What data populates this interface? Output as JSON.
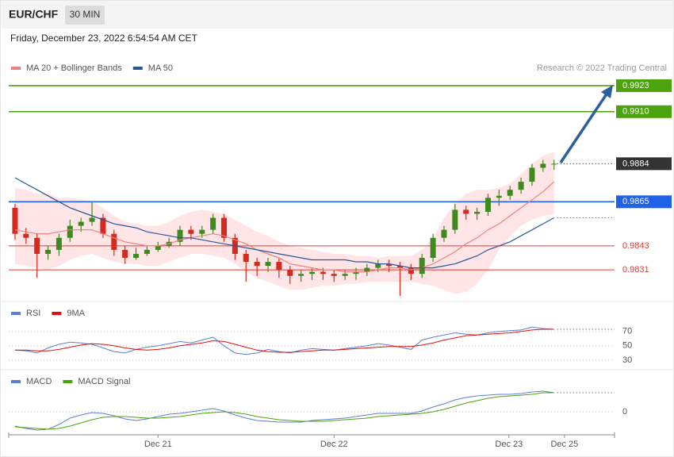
{
  "header": {
    "symbol": "EUR/CHF",
    "interval": "30 MIN",
    "datetime": "Friday, December 23, 2022 6:54:54 AM CET"
  },
  "chart_data": [
    {
      "type": "candlestick",
      "credit": "Research © 2022 Trading Central",
      "xlim": [
        0,
        55
      ],
      "ylim": [
        0.9816,
        0.9942
      ],
      "colors": {
        "up": "#3f8a1e",
        "down": "#d42a20"
      },
      "open": [
        0.9862,
        0.9849,
        0.9847,
        0.9839,
        0.9841,
        0.9847,
        0.9853,
        0.9855,
        0.9857,
        0.9849,
        0.9841,
        0.9837,
        0.9839,
        0.9841,
        0.9843,
        0.9845,
        0.9851,
        0.9849,
        0.9851,
        0.9857,
        0.9847,
        0.9839,
        0.9835,
        0.9833,
        0.9835,
        0.9831,
        0.9828,
        0.9829,
        0.983,
        0.9829,
        0.9828,
        0.9829,
        0.983,
        0.9832,
        0.9834,
        0.9833,
        0.9832,
        0.9829,
        0.9837,
        0.9847,
        0.9851,
        0.9861,
        0.9859,
        0.986,
        0.9867,
        0.9868,
        0.9871,
        0.9875,
        0.9882,
        0.9884
      ],
      "high": [
        0.9864,
        0.9852,
        0.9849,
        0.9843,
        0.9849,
        0.9856,
        0.9857,
        0.9865,
        0.9859,
        0.9851,
        0.9843,
        0.9842,
        0.9843,
        0.9845,
        0.9847,
        0.9853,
        0.9853,
        0.9853,
        0.9859,
        0.9859,
        0.9849,
        0.9841,
        0.9837,
        0.9837,
        0.9837,
        0.9833,
        0.9831,
        0.9832,
        0.9832,
        0.9831,
        0.9831,
        0.9832,
        0.9834,
        0.9836,
        0.9836,
        0.9835,
        0.9834,
        0.9839,
        0.9849,
        0.9853,
        0.9864,
        0.9863,
        0.9862,
        0.9869,
        0.9871,
        0.9873,
        0.9877,
        0.9884,
        0.9886,
        0.9886
      ],
      "low": [
        0.9846,
        0.9844,
        0.9827,
        0.9836,
        0.9838,
        0.9845,
        0.985,
        0.9853,
        0.9847,
        0.9838,
        0.9834,
        0.9836,
        0.9838,
        0.984,
        0.9842,
        0.9843,
        0.9846,
        0.9847,
        0.9849,
        0.9845,
        0.9836,
        0.9825,
        0.9828,
        0.983,
        0.9827,
        0.9824,
        0.9825,
        0.9826,
        0.9826,
        0.9825,
        0.9826,
        0.9826,
        0.9828,
        0.983,
        0.983,
        0.9818,
        0.9826,
        0.9827,
        0.9835,
        0.9845,
        0.9849,
        0.9856,
        0.9856,
        0.9858,
        0.9863,
        0.9866,
        0.9869,
        0.9873,
        0.988,
        0.9881
      ],
      "close": [
        0.9849,
        0.9847,
        0.9839,
        0.9841,
        0.9847,
        0.9853,
        0.9855,
        0.9857,
        0.9849,
        0.9841,
        0.9837,
        0.9839,
        0.9841,
        0.9843,
        0.9845,
        0.9851,
        0.9849,
        0.9851,
        0.9857,
        0.9847,
        0.9839,
        0.9835,
        0.9833,
        0.9835,
        0.9831,
        0.9828,
        0.9829,
        0.983,
        0.9829,
        0.9828,
        0.9829,
        0.983,
        0.9832,
        0.9834,
        0.9833,
        0.9832,
        0.9829,
        0.9837,
        0.9847,
        0.9851,
        0.9861,
        0.9859,
        0.986,
        0.9867,
        0.9868,
        0.9871,
        0.9875,
        0.9882,
        0.9884,
        0.9884
      ],
      "series": [
        {
          "name": "MA 20 + Bollinger Bands",
          "color": "#f08080",
          "values": [
            0.9851,
            0.985,
            0.9849,
            0.9849,
            0.985,
            0.9851,
            0.9851,
            0.9851,
            0.9849,
            0.9847,
            0.9845,
            0.9844,
            0.9843,
            0.9843,
            0.9844,
            0.9846,
            0.9847,
            0.9848,
            0.9849,
            0.9848,
            0.9846,
            0.9844,
            0.9841,
            0.9839,
            0.9837,
            0.9834,
            0.9833,
            0.9832,
            0.9831,
            0.9831,
            0.983,
            0.983,
            0.983,
            0.9831,
            0.9832,
            0.9832,
            0.9831,
            0.9832,
            0.9834,
            0.9837,
            0.984,
            0.9844,
            0.9847,
            0.9851,
            0.9854,
            0.9858,
            0.9862,
            0.9866,
            0.987,
            0.9875
          ]
        },
        {
          "name": "MA 50",
          "color": "#2b5797",
          "values": [
            0.9877,
            0.9874,
            0.9871,
            0.9868,
            0.9865,
            0.9862,
            0.986,
            0.9858,
            0.9856,
            0.9854,
            0.9853,
            0.9852,
            0.985,
            0.9849,
            0.9848,
            0.9847,
            0.9847,
            0.9846,
            0.9845,
            0.9844,
            0.9843,
            0.9842,
            0.9841,
            0.984,
            0.9839,
            0.9838,
            0.9837,
            0.9836,
            0.9836,
            0.9836,
            0.9836,
            0.9835,
            0.9835,
            0.9834,
            0.9834,
            0.9833,
            0.9832,
            0.9832,
            0.9832,
            0.9833,
            0.9834,
            0.9836,
            0.9838,
            0.9841,
            0.9843,
            0.9845,
            0.9848,
            0.9851,
            0.9854,
            0.9857
          ]
        }
      ],
      "bands": {
        "color": "#ffdede",
        "upper": [
          0.9872,
          0.9871,
          0.9869,
          0.9869,
          0.9867,
          0.9867,
          0.9866,
          0.9865,
          0.9862,
          0.9858,
          0.9855,
          0.9854,
          0.9853,
          0.9853,
          0.9855,
          0.9858,
          0.986,
          0.9861,
          0.986,
          0.9859,
          0.9856,
          0.9853,
          0.985,
          0.9848,
          0.9845,
          0.9843,
          0.9842,
          0.9841,
          0.984,
          0.9839,
          0.9839,
          0.9838,
          0.9838,
          0.9837,
          0.9838,
          0.9838,
          0.9838,
          0.9841,
          0.9847,
          0.9857,
          0.9864,
          0.9869,
          0.9871,
          0.9871,
          0.9872,
          0.9874,
          0.9879,
          0.9884,
          0.9888,
          0.989
        ],
        "lower": [
          0.9834,
          0.9833,
          0.9832,
          0.9831,
          0.9833,
          0.9836,
          0.9838,
          0.9839,
          0.9837,
          0.9835,
          0.9834,
          0.9834,
          0.9833,
          0.9833,
          0.9835,
          0.9837,
          0.9839,
          0.9839,
          0.9838,
          0.9837,
          0.9834,
          0.983,
          0.9827,
          0.9825,
          0.9823,
          0.9821,
          0.9821,
          0.9822,
          0.9823,
          0.9823,
          0.9824,
          0.9824,
          0.9825,
          0.9825,
          0.9825,
          0.9825,
          0.9825,
          0.9824,
          0.9823,
          0.9821,
          0.9819,
          0.982,
          0.9824,
          0.9831,
          0.9841,
          0.9848,
          0.9853,
          0.9856,
          0.9858,
          0.9859
        ]
      },
      "levels": [
        {
          "value": 0.9923,
          "color": "#4ca30d",
          "style": "box",
          "line": "solid"
        },
        {
          "value": 0.991,
          "label": "0.9910",
          "color": "#4ca30d",
          "style": "box",
          "line": "solid"
        },
        {
          "value": 0.9884,
          "color": "#333333",
          "style": "box",
          "line": "dotted"
        },
        {
          "value": 0.9865,
          "color": "#1f62e8",
          "style": "box",
          "line": "solid"
        },
        {
          "value": 0.9843,
          "color": "#e23a32",
          "style": "plain",
          "line": "solid"
        },
        {
          "value": 0.9831,
          "color": "#e23a32",
          "style": "plain",
          "line": "solid"
        }
      ]
    },
    {
      "type": "line",
      "xlim": [
        0,
        55
      ],
      "ylim": [
        20,
        105
      ],
      "yticks": [
        30,
        50,
        70
      ],
      "series": [
        {
          "name": "RSI",
          "color": "#5b7fd6",
          "values": [
            44,
            43,
            40,
            47,
            52,
            55,
            54,
            52,
            47,
            42,
            40,
            45,
            48,
            50,
            53,
            56,
            54,
            58,
            62,
            50,
            40,
            38,
            40,
            45,
            42,
            40,
            44,
            46,
            45,
            44,
            46,
            48,
            50,
            53,
            51,
            48,
            45,
            58,
            62,
            65,
            68,
            66,
            65,
            68,
            70,
            71,
            72,
            76,
            74,
            73
          ]
        },
        {
          "name": "9MA",
          "color": "#e01010",
          "values": [
            44,
            44,
            43,
            43,
            45,
            48,
            51,
            53,
            52,
            50,
            47,
            45,
            44,
            45,
            47,
            50,
            52,
            54,
            57,
            56,
            52,
            48,
            44,
            42,
            41,
            41,
            42,
            43,
            44,
            44,
            45,
            46,
            47,
            48,
            49,
            49,
            49,
            51,
            54,
            58,
            61,
            64,
            65,
            66,
            67,
            68,
            70,
            72,
            73,
            73
          ]
        }
      ]
    },
    {
      "type": "line",
      "xlim": [
        0,
        55
      ],
      "ylim": [
        -2.9,
        4.7
      ],
      "yticks": [
        0
      ],
      "xticks": [
        {
          "value": 13.5,
          "label": "Dec 21"
        },
        {
          "value": 29.5,
          "label": "Dec 22"
        },
        {
          "value": 45.4,
          "label": "Dec 23"
        },
        {
          "value": 50.45,
          "label": "Dec 25"
        }
      ],
      "series": [
        {
          "name": "MACD",
          "color": "#5b7fd6",
          "values": [
            -1.8,
            -2.1,
            -2.3,
            -2.2,
            -1.6,
            -0.8,
            -0.4,
            -0.1,
            -0.2,
            -0.5,
            -0.9,
            -1.1,
            -0.9,
            -0.6,
            -0.3,
            -0.2,
            0,
            0.2,
            0.4,
            0.1,
            -0.4,
            -0.8,
            -1.1,
            -1.2,
            -1.3,
            -1.3,
            -1.3,
            -1.1,
            -1.0,
            -0.9,
            -0.8,
            -0.6,
            -0.4,
            -0.2,
            -0.2,
            -0.2,
            -0.2,
            0.1,
            0.6,
            1.0,
            1.5,
            1.8,
            2.0,
            2.1,
            2.2,
            2.2,
            2.3,
            2.5,
            2.6,
            2.4
          ]
        },
        {
          "name": "MACD Signal",
          "color": "#4ca30d",
          "values": [
            -1.9,
            -2.0,
            -2.1,
            -2.2,
            -2.1,
            -1.8,
            -1.4,
            -1.0,
            -0.7,
            -0.6,
            -0.6,
            -0.7,
            -0.8,
            -0.8,
            -0.7,
            -0.6,
            -0.4,
            -0.2,
            -0.1,
            0,
            -0.1,
            -0.3,
            -0.6,
            -0.8,
            -1.0,
            -1.1,
            -1.2,
            -1.2,
            -1.2,
            -1.1,
            -1.0,
            -0.9,
            -0.8,
            -0.6,
            -0.5,
            -0.4,
            -0.3,
            -0.2,
            0,
            0.3,
            0.7,
            1.1,
            1.4,
            1.7,
            1.9,
            2.0,
            2.1,
            2.2,
            2.4,
            2.4
          ]
        }
      ]
    }
  ]
}
